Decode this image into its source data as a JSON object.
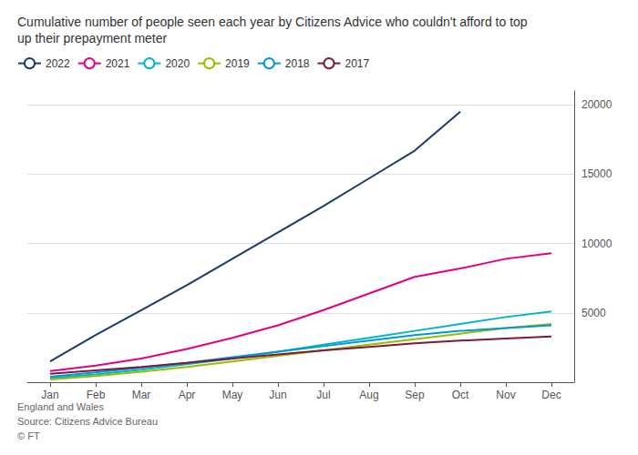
{
  "chart_data": {
    "type": "line",
    "title": "Cumulative number of people seen each year by Citizens Advice who couldn't afford to top\nup their prepayment meter",
    "footer": "England and Wales\nSource: Citizens Advice Bureau\n© FT",
    "categories": [
      "Jan",
      "Feb",
      "Mar",
      "Apr",
      "May",
      "Jun",
      "Jul",
      "Aug",
      "Sep",
      "Oct",
      "Nov",
      "Dec"
    ],
    "series": [
      {
        "name": "2022",
        "color": "#1a3a6b",
        "values": [
          1500,
          3400,
          5200,
          7000,
          8900,
          10800,
          12700,
          14700,
          16700,
          19500,
          null,
          null
        ]
      },
      {
        "name": "2021",
        "color": "#e6007e",
        "values": [
          800,
          1200,
          1700,
          2400,
          3200,
          4100,
          5200,
          6400,
          7600,
          8200,
          8900,
          9300
        ]
      },
      {
        "name": "2020",
        "color": "#00b5c8",
        "values": [
          300,
          550,
          900,
          1300,
          1700,
          2200,
          2700,
          3200,
          3700,
          4200,
          4700,
          5100
        ]
      },
      {
        "name": "2019",
        "color": "#99bb00",
        "values": [
          200,
          450,
          750,
          1100,
          1500,
          1900,
          2300,
          2700,
          3100,
          3500,
          3900,
          4200
        ]
      },
      {
        "name": "2018",
        "color": "#0099cc",
        "values": [
          400,
          700,
          1050,
          1400,
          1800,
          2200,
          2600,
          3000,
          3400,
          3700,
          3900,
          4100
        ]
      },
      {
        "name": "2017",
        "color": "#7b1a3a",
        "values": [
          600,
          850,
          1100,
          1400,
          1700,
          2000,
          2300,
          2550,
          2800,
          3000,
          3150,
          3300
        ]
      }
    ],
    "ylim": [
      0,
      21000
    ],
    "yticks": [
      5000,
      10000,
      15000,
      20000
    ],
    "grid": true,
    "legend": "upper left"
  }
}
